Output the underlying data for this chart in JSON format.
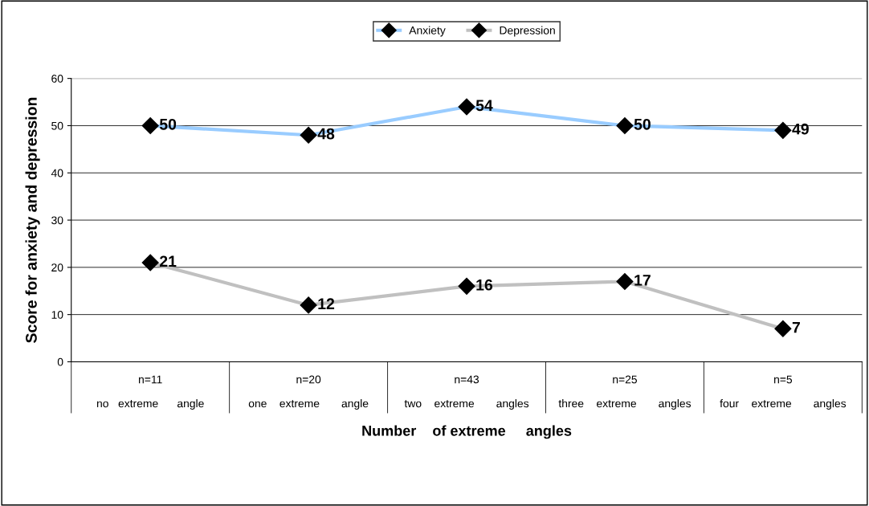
{
  "chart_data": {
    "type": "line",
    "categories": [
      "n=11\n\nno   extreme      angle",
      "n=20\n\none    extreme       angle",
      "n=43\n\ntwo    extreme       angles",
      "n=25\n\nthree    extreme       angles",
      "n=5\n\nfour    extreme       angles"
    ],
    "series": [
      {
        "name": "Anxiety",
        "color": "#99ccff",
        "values": [
          50,
          48,
          54,
          50,
          49
        ]
      },
      {
        "name": "Depression",
        "color": "#c0c0c0",
        "values": [
          21,
          12,
          16,
          17,
          7
        ]
      }
    ],
    "xlabel": "Number    of extreme     angles",
    "ylabel": "Score for anxiety and depression",
    "ylim": [
      0,
      60
    ],
    "yticks": [
      0,
      10,
      20,
      30,
      40,
      50,
      60
    ],
    "grid": "y",
    "legend": "top",
    "marker": "diamond",
    "line_style": "solid",
    "data_labels": true
  }
}
